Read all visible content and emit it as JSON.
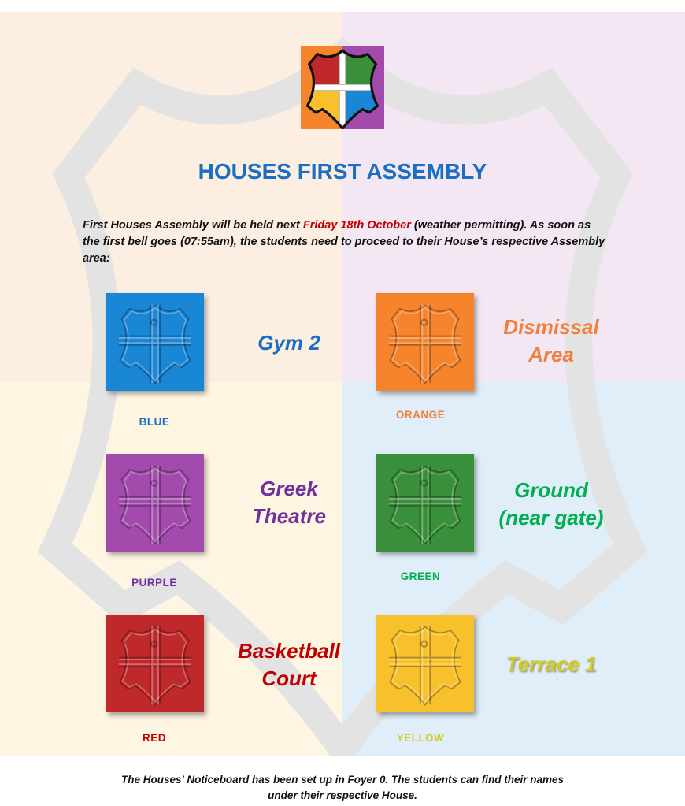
{
  "title": "HOUSES FIRST ASSEMBLY",
  "intro": {
    "before": "First Houses Assembly will be held next ",
    "highlight": "Friday 18th October",
    "after": " (weather permitting). As soon as the first bell goes (07:55am), the students need to proceed to their House’s respective Assembly area:"
  },
  "houses": [
    {
      "name": "BLUE",
      "location_line1": "Gym 2",
      "location_line2": "",
      "color": "#1a86d6",
      "text_color": "#1b6fc2"
    },
    {
      "name": "ORANGE",
      "location_line1": "Dismissal",
      "location_line2": "Area",
      "color": "#f5842c",
      "text_color": "#f0803c"
    },
    {
      "name": "PURPLE",
      "location_line1": "Greek",
      "location_line2": "Theatre",
      "color": "#a24bac",
      "text_color": "#7030a0"
    },
    {
      "name": "GREEN",
      "location_line1": "Ground",
      "location_line2": "(near gate)",
      "color": "#3a8f3a",
      "text_color": "#00b050"
    },
    {
      "name": "RED",
      "location_line1": "Basketball",
      "location_line2": "Court",
      "color": "#c0292b",
      "text_color": "#c00000"
    },
    {
      "name": "YELLOW",
      "location_line1": "Terrace 1",
      "location_line2": "",
      "color": "#f8c12c",
      "text_color": "#d4cc22"
    }
  ],
  "footer": {
    "line1": "The Houses' Noticeboard has been set up in Foyer 0. The students can find their names",
    "line2": "under their respective House."
  },
  "icons": {
    "logo": "house-crest-shield",
    "tile": "embossed-shield"
  }
}
